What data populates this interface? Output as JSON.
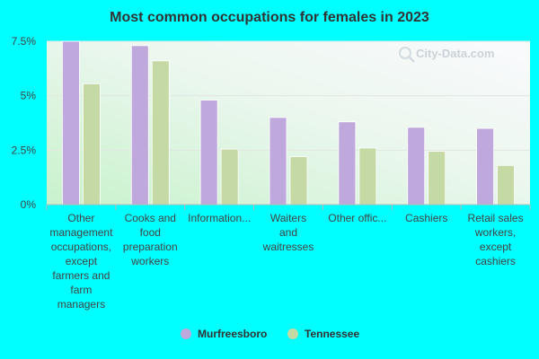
{
  "chart_data": {
    "type": "bar",
    "title": "Most common occupations for females in 2023",
    "watermark": "City-Data.com",
    "categories": [
      [
        "Other",
        "management",
        "occupations,",
        "except",
        "farmers and",
        "farm",
        "managers"
      ],
      [
        "Cooks and",
        "food",
        "preparation",
        "workers"
      ],
      [
        "Information..."
      ],
      [
        "Waiters",
        "and",
        "waitresses"
      ],
      [
        "Other offic..."
      ],
      [
        "Cashiers"
      ],
      [
        "Retail sales",
        "workers,",
        "except",
        "cashiers"
      ]
    ],
    "series": [
      {
        "name": "Murfreesboro",
        "color": "#BFA9DC",
        "values": [
          7.5,
          7.3,
          4.8,
          4.0,
          3.8,
          3.55,
          3.5
        ]
      },
      {
        "name": "Tennessee",
        "color": "#C5D9A5",
        "values": [
          5.55,
          6.6,
          2.55,
          2.2,
          2.6,
          2.45,
          1.8
        ]
      }
    ],
    "yticks": [
      {
        "value": 0,
        "label": "0%"
      },
      {
        "value": 2.5,
        "label": "2.5%"
      },
      {
        "value": 5,
        "label": "5%"
      },
      {
        "value": 7.5,
        "label": "7.5%"
      }
    ],
    "ylim": [
      0,
      7.5
    ],
    "xlabel": "",
    "ylabel": "",
    "grid": true,
    "legend_position": "bottom-center"
  }
}
